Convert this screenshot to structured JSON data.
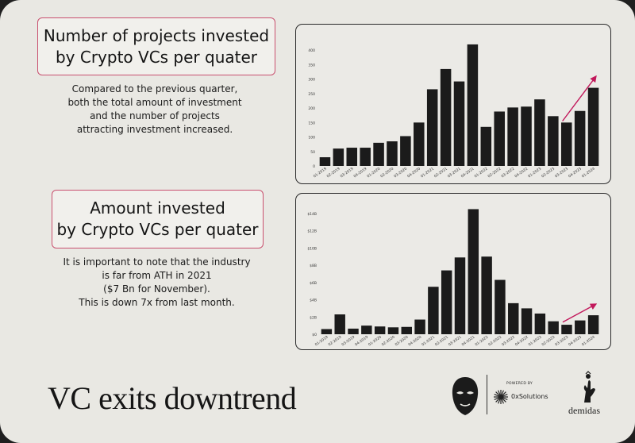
{
  "colors": {
    "bar": "#1b1b1b",
    "accent_arrow": "#c2185b",
    "title_border": "#c9506f",
    "background": "#e9e8e3"
  },
  "header1": {
    "title_line1": "Number of projects invested",
    "title_line2": "by Crypto VCs per quater",
    "desc_lines": [
      "Compared to the previous quarter,",
      "both the total amount of investment",
      "and the number of projects",
      "attracting investment increased."
    ]
  },
  "header2": {
    "title_line1": "Amount invested",
    "title_line2": "by Crypto VCs per quater",
    "desc_lines": [
      "It is important to note that the industry",
      "is far from ATH in 2021",
      "($7 Bn for November).",
      "This is down 7x from last month."
    ]
  },
  "footer": {
    "title": "VC exits downtrend",
    "ox_powered": "POWERED BY",
    "ox_name": "0xSolutions",
    "demidas_name": "demidas"
  },
  "chart_data": [
    {
      "type": "bar",
      "categories": [
        "01-2019",
        "02-2019",
        "03-2019",
        "04-2019",
        "01-2020",
        "02-2020",
        "03-2020",
        "04-2020",
        "01-2021",
        "02-2021",
        "03-2021",
        "04-2021",
        "01-2022",
        "02-2022",
        "03-2022",
        "04-2022",
        "01-2023",
        "02-2023",
        "03-2023",
        "04-2023",
        "01-2024"
      ],
      "values": [
        30,
        60,
        63,
        63,
        80,
        85,
        103,
        150,
        265,
        335,
        292,
        420,
        135,
        188,
        202,
        205,
        230,
        172,
        150,
        190,
        270
      ],
      "ylim": [
        0,
        450
      ],
      "yticks": [
        0,
        50,
        100,
        150,
        200,
        250,
        300,
        350,
        400
      ],
      "ytick_labels": [
        "0",
        "50",
        "100",
        "150",
        "200",
        "250",
        "300",
        "350",
        "400"
      ],
      "trend_arrow": {
        "from_index": 18,
        "to_index": 20,
        "from_value": 155,
        "to_value": 310
      },
      "grid": false
    },
    {
      "type": "bar",
      "categories": [
        "01-2019",
        "02-2019",
        "03-2019",
        "04-2019",
        "01-2020",
        "02-2020",
        "03-2020",
        "04-2020",
        "01-2021",
        "02-2021",
        "03-2021",
        "04-2021",
        "01-2022",
        "02-2022",
        "03-2022",
        "04-2022",
        "01-2023",
        "02-2023",
        "03-2023",
        "04-2023",
        "01-2024"
      ],
      "values": [
        0.6,
        2.3,
        0.65,
        1.0,
        0.9,
        0.8,
        0.85,
        1.7,
        5.5,
        7.4,
        8.9,
        14.5,
        9.0,
        6.3,
        3.6,
        3.0,
        2.4,
        1.5,
        1.1,
        1.6,
        2.2
      ],
      "ylim": [
        0,
        15
      ],
      "yticks": [
        0,
        2,
        4,
        6,
        8,
        10,
        12,
        14
      ],
      "ytick_labels": [
        "$0",
        "$2B",
        "$4B",
        "$6B",
        "$8B",
        "$10B",
        "$12B",
        "$14B"
      ],
      "trend_arrow": {
        "from_index": 18,
        "to_index": 20,
        "from_value": 1.4,
        "to_value": 3.5
      },
      "grid": false
    }
  ]
}
